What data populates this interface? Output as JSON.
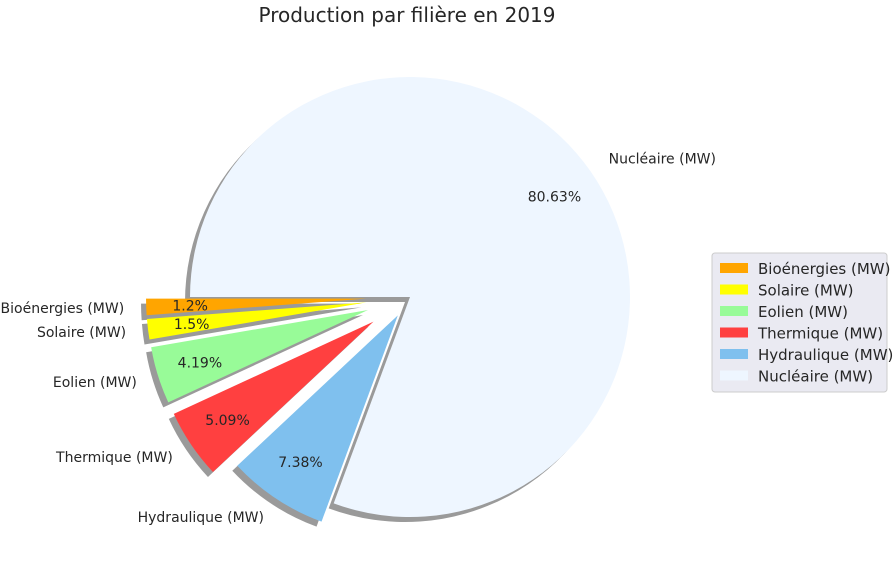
{
  "chart_data": {
    "type": "pie",
    "title": "Production par filière en 2019",
    "labels": [
      "Bioénergies (MW)",
      "Solaire (MW)",
      "Eolien (MW)",
      "Thermique (MW)",
      "Hydraulique (MW)",
      "Nucléaire (MW)"
    ],
    "values": [
      1.2,
      1.5,
      4.19,
      5.09,
      7.38,
      80.63
    ],
    "value_labels": [
      "1.2%",
      "1.5%",
      "4.19%",
      "5.09%",
      "7.38%",
      "80.63%"
    ],
    "explode": [
      0.2,
      0.2,
      0.2,
      0.2,
      0.1,
      0
    ],
    "colors": [
      "#ffa500",
      "#ffff00",
      "#98fb98",
      "#ff4040",
      "#7fc0ee",
      "#eef6ff"
    ],
    "start_angle": 180,
    "counterclock": true,
    "shadow": true,
    "legend": {
      "placement": "right",
      "entries": [
        "Bioénergies (MW)",
        "Solaire (MW)",
        "Eolien (MW)",
        "Thermique (MW)",
        "Hydraulique (MW)",
        "Nucléaire (MW)"
      ],
      "background": "#eaeaf2"
    }
  }
}
